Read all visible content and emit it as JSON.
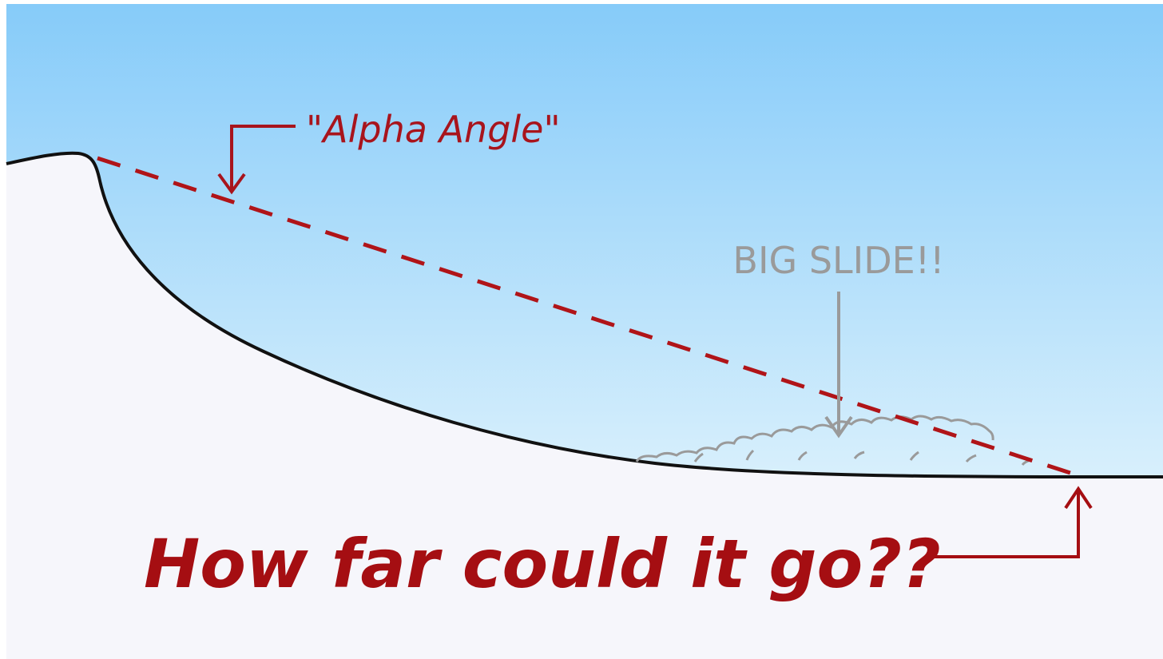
{
  "labels": {
    "alpha_angle": "\"Alpha Angle\"",
    "big_slide": "BIG SLIDE!!",
    "question": "How far could it go??"
  }
}
